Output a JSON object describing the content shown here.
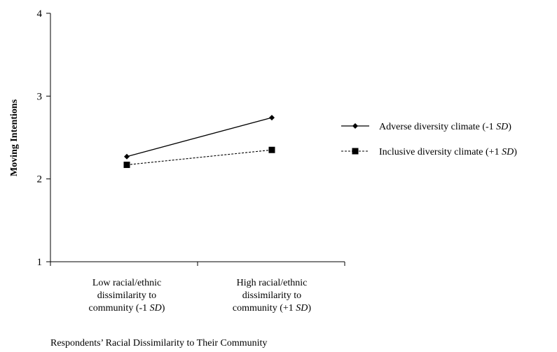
{
  "chart_data": {
    "type": "line",
    "title": "",
    "ylabel": "Moving Intentions",
    "xlabel": "Respondents’ Racial Dissimilarity to Their Community",
    "ylim": [
      1,
      4
    ],
    "yticks": [
      "1",
      "2",
      "3",
      "4"
    ],
    "categories": [
      [
        "Low racial/ethnic",
        "dissimilarity to",
        "community (-1 SD)"
      ],
      [
        "High racial/ethnic",
        "dissimilarity to",
        "community (+1 SD)"
      ]
    ],
    "series": [
      {
        "name": "Adverse diversity climate (-1 SD)",
        "values": [
          2.27,
          2.74
        ],
        "marker": "diamond",
        "line": "solid",
        "color": "#000000"
      },
      {
        "name": "Inclusive diversity climate (+1 SD)",
        "values": [
          2.17,
          2.35
        ],
        "marker": "square",
        "line": "dashed",
        "color": "#000000"
      }
    ],
    "grid": false,
    "legend_position": "right"
  }
}
